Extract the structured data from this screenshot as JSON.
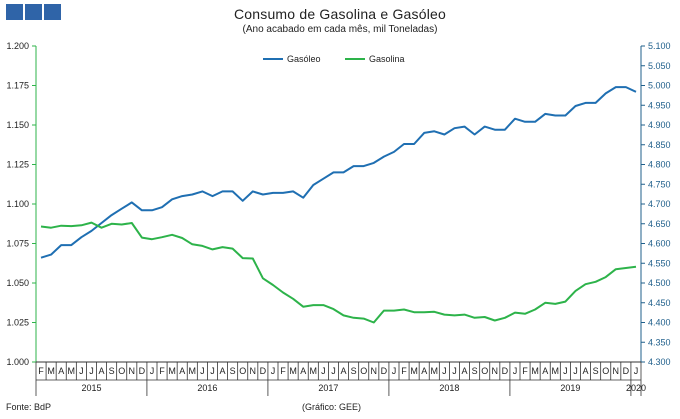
{
  "header": {
    "logo_color": "#2f64a8"
  },
  "footer": {
    "source": "Fonte: BdP",
    "credit": "(Gráfico: GEE)"
  },
  "chart_data": {
    "type": "line",
    "title": "Consumo de Gasolina e Gasóleo",
    "subtitle": "(Ano acabado em cada mês, mil Toneladas)",
    "x": [
      "2015-02",
      "2015-03",
      "2015-04",
      "2015-05",
      "2015-06",
      "2015-07",
      "2015-08",
      "2015-09",
      "2015-10",
      "2015-11",
      "2015-12",
      "2016-01",
      "2016-02",
      "2016-03",
      "2016-04",
      "2016-05",
      "2016-06",
      "2016-07",
      "2016-08",
      "2016-09",
      "2016-10",
      "2016-11",
      "2016-12",
      "2017-01",
      "2017-02",
      "2017-03",
      "2017-04",
      "2017-05",
      "2017-06",
      "2017-07",
      "2017-08",
      "2017-09",
      "2017-10",
      "2017-11",
      "2017-12",
      "2018-01",
      "2018-02",
      "2018-03",
      "2018-04",
      "2018-05",
      "2018-06",
      "2018-07",
      "2018-08",
      "2018-09",
      "2018-10",
      "2018-11",
      "2018-12",
      "2019-01",
      "2019-02",
      "2019-03",
      "2019-04",
      "2019-05",
      "2019-06",
      "2019-07",
      "2019-08",
      "2019-09",
      "2019-10",
      "2019-11",
      "2019-12",
      "2020-01"
    ],
    "month_labels": [
      "F",
      "M",
      "A",
      "M",
      "J",
      "J",
      "A",
      "S",
      "O",
      "N",
      "D",
      "J",
      "F",
      "M",
      "A",
      "M",
      "J",
      "J",
      "A",
      "S",
      "O",
      "N",
      "D",
      "J",
      "F",
      "M",
      "A",
      "M",
      "J",
      "J",
      "A",
      "S",
      "O",
      "N",
      "D",
      "J",
      "F",
      "M",
      "A",
      "M",
      "J",
      "J",
      "A",
      "S",
      "O",
      "N",
      "D",
      "J",
      "F",
      "M",
      "A",
      "M",
      "J",
      "J",
      "A",
      "S",
      "O",
      "N",
      "D",
      "J"
    ],
    "year_labels": [
      {
        "label": "2015",
        "start": 0,
        "end": 10
      },
      {
        "label": "2016",
        "start": 11,
        "end": 22
      },
      {
        "label": "2017",
        "start": 23,
        "end": 34
      },
      {
        "label": "2018",
        "start": 35,
        "end": 46
      },
      {
        "label": "2019",
        "start": 47,
        "end": 58
      },
      {
        "label": "2020",
        "start": 59,
        "end": 59
      }
    ],
    "left_axis": {
      "ylim": [
        1.0,
        1.2
      ],
      "ticks": [
        "1.000",
        "1.025",
        "1.050",
        "1.075",
        "1.100",
        "1.125",
        "1.150",
        "1.175",
        "1.200"
      ]
    },
    "right_axis": {
      "ylim": [
        4300,
        5100
      ],
      "ticks": [
        "4.300",
        "4.350",
        "4.400",
        "4.450",
        "4.500",
        "4.550",
        "4.600",
        "4.650",
        "4.700",
        "4.750",
        "4.800",
        "4.850",
        "4.900",
        "4.950",
        "5.000",
        "5.050",
        "5.100"
      ]
    },
    "legend": "top",
    "grid": false,
    "series": [
      {
        "name": "Gasóleo",
        "axis": "left",
        "color": "#1f6fb2",
        "values": [
          1.066,
          1.068,
          1.074,
          1.074,
          1.079,
          1.083,
          1.088,
          1.093,
          1.097,
          1.101,
          1.096,
          1.096,
          1.098,
          1.103,
          1.105,
          1.106,
          1.108,
          1.105,
          1.108,
          1.108,
          1.102,
          1.108,
          1.106,
          1.107,
          1.107,
          1.108,
          1.104,
          1.112,
          1.116,
          1.12,
          1.12,
          1.124,
          1.124,
          1.126,
          1.13,
          1.133,
          1.138,
          1.138,
          1.145,
          1.146,
          1.144,
          1.148,
          1.149,
          1.144,
          1.149,
          1.147,
          1.147,
          1.154,
          1.152,
          1.152,
          1.157,
          1.156,
          1.156,
          1.162,
          1.164,
          1.164,
          1.17,
          1.174,
          1.174,
          1.171
        ]
      },
      {
        "name": "Gasolina",
        "axis": "right",
        "color": "#2db34a",
        "values": [
          4643,
          4640,
          4645,
          4644,
          4646,
          4653,
          4640,
          4650,
          4648,
          4652,
          4615,
          4611,
          4616,
          4622,
          4614,
          4598,
          4594,
          4585,
          4591,
          4587,
          4563,
          4562,
          4512,
          4495,
          4476,
          4460,
          4440,
          4444,
          4444,
          4434,
          4418,
          4412,
          4410,
          4400,
          4430,
          4430,
          4433,
          4426,
          4426,
          4427,
          4420,
          4418,
          4420,
          4412,
          4414,
          4405,
          4412,
          4425,
          4422,
          4433,
          4450,
          4447,
          4453,
          4480,
          4497,
          4503,
          4515,
          4535,
          4538,
          4541
        ]
      }
    ]
  }
}
